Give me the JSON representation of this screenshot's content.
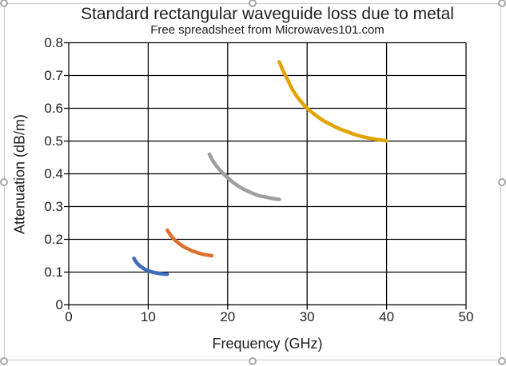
{
  "chart_data": {
    "type": "line",
    "title": "Standard rectangular waveguide loss due to metal",
    "subtitle": "Free spreadsheet from Microwaves101.com",
    "xlabel": "Frequency (GHz)",
    "ylabel": "Attenuation (dB/m)",
    "xlim": [
      0,
      50
    ],
    "ylim": [
      0,
      0.8
    ],
    "xticks": [
      0,
      10,
      20,
      30,
      40,
      50
    ],
    "xtick_labels": [
      "0",
      "10",
      "20",
      "30",
      "40",
      "50"
    ],
    "yticks": [
      0,
      0.1,
      0.2,
      0.3,
      0.4,
      0.5,
      0.6,
      0.7,
      0.8
    ],
    "ytick_labels": [
      "0",
      "0.1",
      "0.2",
      "0.3",
      "0.4",
      "0.5",
      "0.6",
      "0.7",
      "0.8"
    ],
    "grid": true,
    "legend": false,
    "gridline_color": "#000000",
    "series": [
      {
        "name": "blue-band-curve",
        "color": "#3F6BBB",
        "points": [
          [
            8.2,
            0.142
          ],
          [
            8.6,
            0.127
          ],
          [
            9,
            0.118
          ],
          [
            9.5,
            0.11
          ],
          [
            10,
            0.104
          ],
          [
            10.5,
            0.1
          ],
          [
            11,
            0.0975
          ],
          [
            11.5,
            0.0955
          ],
          [
            12,
            0.094
          ],
          [
            12.4,
            0.0935
          ]
        ]
      },
      {
        "name": "orange-band-curve",
        "color": "#DC712D",
        "points": [
          [
            12.4,
            0.228
          ],
          [
            13,
            0.207
          ],
          [
            13.5,
            0.195
          ],
          [
            14,
            0.185
          ],
          [
            14.5,
            0.177
          ],
          [
            15,
            0.171
          ],
          [
            15.5,
            0.165
          ],
          [
            16,
            0.161
          ],
          [
            16.5,
            0.157
          ],
          [
            17,
            0.154
          ],
          [
            17.5,
            0.152
          ],
          [
            18,
            0.15
          ]
        ]
      },
      {
        "name": "gray-band-curve",
        "color": "#9E9E9E",
        "points": [
          [
            17.7,
            0.46
          ],
          [
            18.2,
            0.437
          ],
          [
            19,
            0.412
          ],
          [
            20,
            0.388
          ],
          [
            21,
            0.368
          ],
          [
            22,
            0.353
          ],
          [
            23,
            0.342
          ],
          [
            24,
            0.333
          ],
          [
            25,
            0.328
          ],
          [
            26,
            0.3235
          ],
          [
            26.5,
            0.322
          ]
        ]
      },
      {
        "name": "gold-band-curve",
        "color": "#E2A400",
        "points": [
          [
            26.5,
            0.742
          ],
          [
            27,
            0.713
          ],
          [
            27.5,
            0.69
          ],
          [
            28,
            0.664
          ],
          [
            28.5,
            0.644
          ],
          [
            29,
            0.627
          ],
          [
            29.5,
            0.613
          ],
          [
            30,
            0.6
          ],
          [
            31,
            0.58
          ],
          [
            32,
            0.563
          ],
          [
            33,
            0.55
          ],
          [
            34,
            0.538
          ],
          [
            35,
            0.529
          ],
          [
            36,
            0.52
          ],
          [
            37,
            0.513
          ],
          [
            38,
            0.508
          ],
          [
            39,
            0.504
          ],
          [
            40,
            0.501
          ]
        ]
      }
    ]
  }
}
